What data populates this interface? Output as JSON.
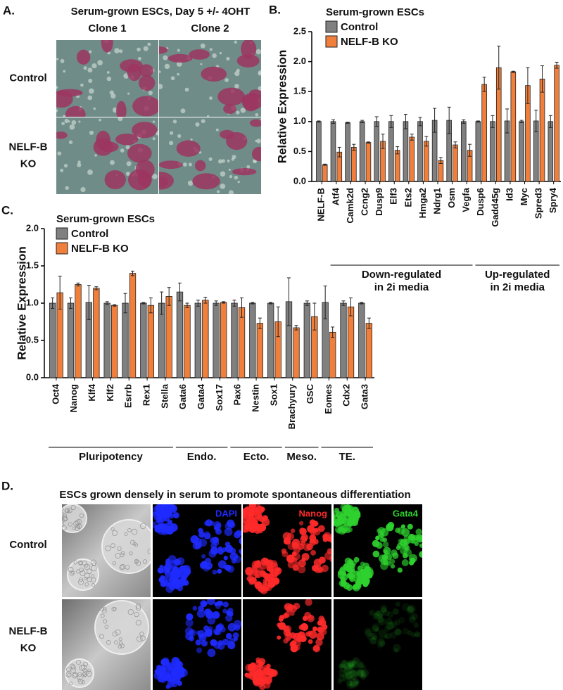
{
  "panels": {
    "a": {
      "label": "A.",
      "title": "Serum-grown ESCs, Day 5 +/- 4OHT",
      "columns": [
        "Clone 1",
        "Clone 2"
      ],
      "rows": [
        [
          "Control"
        ],
        [
          "NELF-B",
          "KO"
        ]
      ]
    },
    "d": {
      "label": "D.",
      "title": "ESCs grown densely in serum to promote spontaneous differentiation",
      "channels": [
        "DAPI",
        "Nanog",
        "Gata4"
      ],
      "rows": [
        [
          "Control"
        ],
        [
          "NELF-B",
          "KO"
        ]
      ]
    }
  },
  "chart_data": [
    {
      "type": "bar",
      "panel_label": "B.",
      "legend_title": "Serum-grown ESCs",
      "y_label": "Relative Expression",
      "categories": [
        "NELF-B",
        "Atf4",
        "Camk2d",
        "Ccng2",
        "Dusp9",
        "Elf3",
        "Ets2",
        "Hmga2",
        "Ndrg1",
        "Osm",
        "Vegfa",
        "Dusp6",
        "Gadd45g",
        "Id3",
        "Myc",
        "Spred3",
        "Spry4"
      ],
      "series": [
        {
          "name": "Control",
          "color": "#808080",
          "values": [
            1.0,
            1.0,
            0.98,
            1.0,
            1.0,
            1.0,
            1.0,
            1.0,
            1.02,
            1.02,
            1.0,
            1.0,
            1.0,
            1.01,
            1.0,
            1.01,
            1.0
          ],
          "errors": [
            0.01,
            0.03,
            0.01,
            0.02,
            0.08,
            0.1,
            0.12,
            0.07,
            0.2,
            0.22,
            0.03,
            0.01,
            0.1,
            0.2,
            0.02,
            0.18,
            0.1
          ]
        },
        {
          "name": "NELF-B KO",
          "color": "#f07f3c",
          "values": [
            0.28,
            0.49,
            0.57,
            0.65,
            0.67,
            0.52,
            0.74,
            0.67,
            0.35,
            0.61,
            0.52,
            1.62,
            1.9,
            1.83,
            1.6,
            1.71,
            1.94
          ],
          "errors": [
            0.01,
            0.08,
            0.05,
            0.01,
            0.12,
            0.06,
            0.05,
            0.08,
            0.05,
            0.05,
            0.1,
            0.12,
            0.36,
            0.01,
            0.3,
            0.22,
            0.05
          ]
        }
      ],
      "ylim": [
        0,
        2.5
      ],
      "yticks": [
        {
          "value": 0,
          "label": "0.0"
        },
        0.5,
        {
          "value": 1,
          "label": "1.0"
        },
        1.5,
        {
          "value": 2,
          "label": "2.0"
        },
        2.5
      ],
      "groups": [
        {
          "lines": [
            "Down-regulated",
            "in 2i media"
          ],
          "from": "Atf4",
          "to": "Vegfa"
        },
        {
          "lines": [
            "Up-regulated",
            "in 2i media"
          ],
          "from": "Dusp6",
          "to": "Spry4"
        }
      ]
    },
    {
      "type": "bar",
      "panel_label": "C.",
      "legend_title": "Serum-grown ESCs",
      "y_label": "Relative Expression",
      "categories": [
        "Oct4",
        "Nanog",
        "Klf4",
        "Klf2",
        "Esrrb",
        "Rex1",
        "Stella",
        "Gata6",
        "Gata4",
        "Sox17",
        "Pax6",
        "Nestin",
        "Sox1",
        "Brachyury",
        "GSC",
        "Eomes",
        "Cdx2",
        "Gata3"
      ],
      "series": [
        {
          "name": "Control",
          "color": "#808080",
          "values": [
            1.0,
            1.0,
            1.01,
            1.0,
            1.0,
            1.0,
            1.0,
            1.15,
            1.0,
            1.0,
            1.0,
            1.0,
            1.0,
            1.02,
            1.0,
            1.01,
            1.0,
            1.0
          ],
          "errors": [
            0.07,
            0.07,
            0.23,
            0.02,
            0.13,
            0.01,
            0.15,
            0.12,
            0.04,
            0.03,
            0.04,
            0.01,
            0.01,
            0.32,
            0.03,
            0.22,
            0.03,
            0.01
          ]
        },
        {
          "name": "NELF-B KO",
          "color": "#f07f3c",
          "values": [
            1.14,
            1.25,
            1.2,
            0.97,
            1.4,
            0.97,
            1.09,
            0.97,
            1.04,
            1.01,
            0.94,
            0.73,
            0.75,
            0.67,
            0.82,
            0.61,
            0.95,
            0.73
          ],
          "errors": [
            0.22,
            0.02,
            0.02,
            0.01,
            0.03,
            0.1,
            0.12,
            0.03,
            0.04,
            0.01,
            0.13,
            0.07,
            0.2,
            0.03,
            0.18,
            0.07,
            0.12,
            0.07
          ]
        }
      ],
      "ylim": [
        0,
        2.0
      ],
      "yticks": [
        {
          "value": 0,
          "label": "0.0"
        },
        0.5,
        {
          "value": 1,
          "label": "1.0"
        },
        1.5,
        {
          "value": 2,
          "label": "2.0"
        }
      ],
      "groups": [
        {
          "lines": [
            "Pluripotency"
          ],
          "from": "Oct4",
          "to": "Stella"
        },
        {
          "lines": [
            "Endo."
          ],
          "from": "Gata6",
          "to": "Sox17"
        },
        {
          "lines": [
            "Ecto."
          ],
          "from": "Pax6",
          "to": "Sox1"
        },
        {
          "lines": [
            "Meso."
          ],
          "from": "Brachyury",
          "to": "GSC"
        },
        {
          "lines": [
            "TE."
          ],
          "from": "Eomes",
          "to": "Gata3"
        }
      ]
    }
  ]
}
